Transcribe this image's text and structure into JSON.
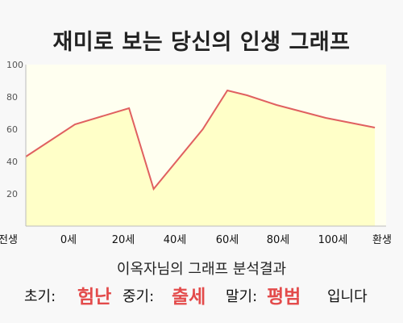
{
  "title": "재미로 보는 당신의 인생 그래프",
  "chart_data": {
    "type": "area",
    "x_labels": [
      "전생",
      "0세",
      "20세",
      "40세",
      "60세",
      "80세",
      "100세",
      "환생"
    ],
    "ylim": [
      0,
      100
    ],
    "y_ticks": [
      20,
      40,
      60,
      80,
      100
    ],
    "grid": false,
    "points": [
      {
        "x": 0,
        "y": 43
      },
      {
        "x": 1,
        "y": 63
      },
      {
        "x": 2.1,
        "y": 73
      },
      {
        "x": 2.6,
        "y": 23
      },
      {
        "x": 3.6,
        "y": 60
      },
      {
        "x": 4.1,
        "y": 84
      },
      {
        "x": 4.5,
        "y": 81
      },
      {
        "x": 5.1,
        "y": 75
      },
      {
        "x": 6.1,
        "y": 67
      },
      {
        "x": 7.1,
        "y": 61
      }
    ],
    "line_color": "#e06060",
    "fill_color": "#ffffc8",
    "background_color": "#fffff0"
  },
  "result": {
    "heading": "이옥자님의 그래프 분석결과",
    "early_label": "초기:",
    "early_value": "험난",
    "middle_label": "중기:",
    "middle_value": "출세",
    "late_label": "말기:",
    "late_value": "평범",
    "ending": "입니다",
    "highlight_color": "#e34b4b"
  }
}
